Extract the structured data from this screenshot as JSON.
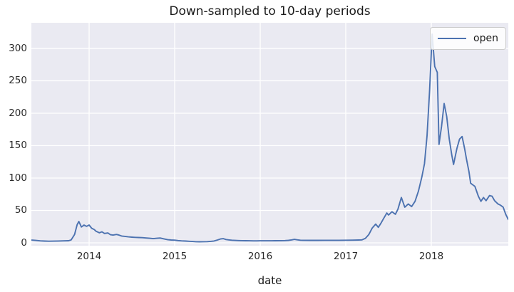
{
  "title": "Down-sampled to 10-day periods",
  "x_axis_label": "date",
  "legend": {
    "label": "open"
  },
  "colors": {
    "line": "#4c72b0",
    "plot_background": "#eaeaf2",
    "grid": "#ffffff",
    "text": "#262626",
    "legend_border": "#cccccc"
  },
  "chart_data": {
    "type": "line",
    "title": "Down-sampled to 10-day periods",
    "xlabel": "date",
    "ylabel": "",
    "grid": true,
    "legend_position": "upper right",
    "xlim": [
      2013.325,
      2018.9
    ],
    "ylim": [
      -4.4,
      339.5
    ],
    "x_ticks": [
      2014,
      2015,
      2016,
      2017,
      2018
    ],
    "x_tick_labels": [
      "2014",
      "2015",
      "2016",
      "2017",
      "2018"
    ],
    "y_ticks": [
      0,
      50,
      100,
      150,
      200,
      250,
      300
    ],
    "y_tick_labels": [
      "0",
      "50",
      "100",
      "150",
      "200",
      "250",
      "300"
    ],
    "series": [
      {
        "name": "open",
        "color": "#4c72b0",
        "points": [
          [
            2013.33,
            4.3
          ],
          [
            2013.38,
            3.7
          ],
          [
            2013.43,
            3.1
          ],
          [
            2013.48,
            2.7
          ],
          [
            2013.53,
            2.5
          ],
          [
            2013.58,
            2.6
          ],
          [
            2013.64,
            2.9
          ],
          [
            2013.7,
            3.1
          ],
          [
            2013.76,
            3.3
          ],
          [
            2013.79,
            4.5
          ],
          [
            2013.83,
            13
          ],
          [
            2013.86,
            28
          ],
          [
            2013.88,
            33
          ],
          [
            2013.91,
            24.5
          ],
          [
            2013.94,
            27.5
          ],
          [
            2013.97,
            25.5
          ],
          [
            2014.0,
            27.5
          ],
          [
            2014.03,
            22.5
          ],
          [
            2014.06,
            20.5
          ],
          [
            2014.08,
            18
          ],
          [
            2014.12,
            15.5
          ],
          [
            2014.15,
            17
          ],
          [
            2014.18,
            14.5
          ],
          [
            2014.22,
            15.3
          ],
          [
            2014.25,
            12.5
          ],
          [
            2014.28,
            12
          ],
          [
            2014.32,
            13
          ],
          [
            2014.35,
            12
          ],
          [
            2014.38,
            10.5
          ],
          [
            2014.42,
            10
          ],
          [
            2014.46,
            9.2
          ],
          [
            2014.5,
            8.8
          ],
          [
            2014.54,
            8.5
          ],
          [
            2014.58,
            8.2
          ],
          [
            2014.62,
            8.0
          ],
          [
            2014.67,
            7.5
          ],
          [
            2014.71,
            7.0
          ],
          [
            2014.75,
            6.5
          ],
          [
            2014.79,
            7.0
          ],
          [
            2014.83,
            7.5
          ],
          [
            2014.87,
            6.3
          ],
          [
            2014.92,
            4.8
          ],
          [
            2014.96,
            4.4
          ],
          [
            2015.0,
            4.2
          ],
          [
            2015.04,
            3.5
          ],
          [
            2015.08,
            3.1
          ],
          [
            2015.13,
            2.7
          ],
          [
            2015.17,
            2.4
          ],
          [
            2015.21,
            2.1
          ],
          [
            2015.25,
            1.8
          ],
          [
            2015.29,
            1.6
          ],
          [
            2015.33,
            1.7
          ],
          [
            2015.38,
            1.9
          ],
          [
            2015.42,
            2.3
          ],
          [
            2015.46,
            2.9
          ],
          [
            2015.5,
            4.4
          ],
          [
            2015.54,
            6.2
          ],
          [
            2015.57,
            6.5
          ],
          [
            2015.6,
            5.2
          ],
          [
            2015.63,
            4.6
          ],
          [
            2015.67,
            4.1
          ],
          [
            2015.71,
            3.7
          ],
          [
            2015.75,
            3.5
          ],
          [
            2015.79,
            3.4
          ],
          [
            2015.83,
            3.3
          ],
          [
            2015.88,
            3.2
          ],
          [
            2015.92,
            3.1
          ],
          [
            2015.96,
            3.1
          ],
          [
            2016.0,
            3.2
          ],
          [
            2016.08,
            3.2
          ],
          [
            2016.17,
            3.3
          ],
          [
            2016.25,
            3.4
          ],
          [
            2016.29,
            3.5
          ],
          [
            2016.33,
            3.8
          ],
          [
            2016.37,
            4.6
          ],
          [
            2016.4,
            5.4
          ],
          [
            2016.43,
            4.7
          ],
          [
            2016.47,
            4.1
          ],
          [
            2016.5,
            3.9
          ],
          [
            2016.58,
            3.8
          ],
          [
            2016.67,
            3.8
          ],
          [
            2016.75,
            3.9
          ],
          [
            2016.83,
            3.9
          ],
          [
            2016.92,
            3.9
          ],
          [
            2017.0,
            4.1
          ],
          [
            2017.08,
            4.2
          ],
          [
            2017.15,
            4.4
          ],
          [
            2017.19,
            4.6
          ],
          [
            2017.23,
            7
          ],
          [
            2017.27,
            13
          ],
          [
            2017.31,
            23
          ],
          [
            2017.35,
            29
          ],
          [
            2017.38,
            24
          ],
          [
            2017.41,
            30
          ],
          [
            2017.44,
            37
          ],
          [
            2017.48,
            46
          ],
          [
            2017.5,
            43
          ],
          [
            2017.54,
            48
          ],
          [
            2017.58,
            44
          ],
          [
            2017.61,
            52
          ],
          [
            2017.65,
            70
          ],
          [
            2017.69,
            55
          ],
          [
            2017.73,
            60
          ],
          [
            2017.77,
            56
          ],
          [
            2017.81,
            64
          ],
          [
            2017.85,
            80
          ],
          [
            2017.89,
            102
          ],
          [
            2017.92,
            122
          ],
          [
            2017.95,
            165
          ],
          [
            2017.98,
            235
          ],
          [
            2018.01,
            322
          ],
          [
            2018.04,
            272
          ],
          [
            2018.07,
            263
          ],
          [
            2018.09,
            152
          ],
          [
            2018.12,
            180
          ],
          [
            2018.15,
            215
          ],
          [
            2018.18,
            195
          ],
          [
            2018.21,
            160
          ],
          [
            2018.24,
            135
          ],
          [
            2018.26,
            121
          ],
          [
            2018.3,
            146
          ],
          [
            2018.33,
            160
          ],
          [
            2018.36,
            164
          ],
          [
            2018.39,
            145
          ],
          [
            2018.41,
            130
          ],
          [
            2018.44,
            110
          ],
          [
            2018.46,
            92
          ],
          [
            2018.48,
            90
          ],
          [
            2018.51,
            87
          ],
          [
            2018.55,
            72
          ],
          [
            2018.58,
            64
          ],
          [
            2018.61,
            70
          ],
          [
            2018.64,
            65
          ],
          [
            2018.68,
            73
          ],
          [
            2018.71,
            72
          ],
          [
            2018.74,
            65
          ],
          [
            2018.78,
            60
          ],
          [
            2018.81,
            58
          ],
          [
            2018.84,
            55
          ],
          [
            2018.87,
            44
          ],
          [
            2018.9,
            36
          ]
        ]
      }
    ]
  }
}
